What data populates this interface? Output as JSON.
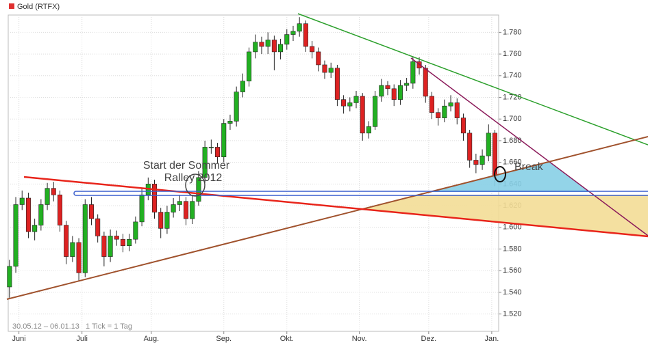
{
  "chart_data": {
    "type": "candlestick",
    "name": "Gold (RTFX)",
    "legend_color": "#e03030",
    "up_color": "#22b022",
    "down_color": "#dd2222",
    "x": [
      0,
      2,
      4,
      6,
      8,
      10,
      12,
      14,
      16,
      18,
      20,
      22,
      24,
      26,
      28,
      30,
      32,
      34,
      36,
      38,
      40,
      42,
      44,
      46,
      48,
      50,
      52,
      54,
      56,
      58,
      60,
      62,
      64,
      66,
      68,
      70,
      72,
      74,
      76,
      78,
      80,
      82,
      84,
      86,
      88,
      90,
      92,
      94,
      96,
      98,
      100,
      102,
      104,
      106,
      108,
      110,
      112,
      114,
      116,
      118,
      120,
      122,
      124,
      126,
      128,
      130,
      132,
      134,
      136,
      138,
      140,
      142,
      144,
      146,
      148,
      150,
      152,
      154
    ],
    "open": [
      1545,
      1564,
      1621,
      1627,
      1596,
      1602,
      1621,
      1636,
      1630,
      1602,
      1573,
      1586,
      1558,
      1621,
      1608,
      1592,
      1573,
      1592,
      1589,
      1583,
      1589,
      1605,
      1630,
      1640,
      1614,
      1599,
      1614,
      1621,
      1624,
      1608,
      1624,
      1646,
      1674,
      1674,
      1665,
      1696,
      1698,
      1725,
      1735,
      1762,
      1771,
      1767,
      1773,
      1762,
      1769,
      1778,
      1781,
      1788,
      1767,
      1762,
      1750,
      1743,
      1747,
      1718,
      1712,
      1715,
      1721,
      1687,
      1693,
      1721,
      1731,
      1728,
      1718,
      1731,
      1733,
      1753,
      1747,
      1721,
      1706,
      1701,
      1712,
      1715,
      1701,
      1687,
      1662,
      1658,
      1666,
      1687
    ],
    "high": [
      1570,
      1628,
      1634,
      1632,
      1608,
      1626,
      1641,
      1642,
      1634,
      1606,
      1592,
      1590,
      1626,
      1628,
      1612,
      1596,
      1598,
      1597,
      1594,
      1594,
      1610,
      1636,
      1646,
      1644,
      1618,
      1620,
      1627,
      1630,
      1628,
      1630,
      1652,
      1680,
      1681,
      1678,
      1700,
      1704,
      1730,
      1742,
      1766,
      1778,
      1776,
      1780,
      1777,
      1774,
      1783,
      1786,
      1794,
      1791,
      1772,
      1766,
      1754,
      1752,
      1750,
      1722,
      1720,
      1726,
      1724,
      1698,
      1726,
      1737,
      1735,
      1732,
      1736,
      1738,
      1758,
      1757,
      1750,
      1725,
      1710,
      1718,
      1722,
      1719,
      1705,
      1690,
      1668,
      1672,
      1695,
      1690
    ],
    "low": [
      1535,
      1558,
      1616,
      1590,
      1588,
      1597,
      1616,
      1624,
      1596,
      1566,
      1568,
      1550,
      1554,
      1602,
      1586,
      1564,
      1568,
      1583,
      1577,
      1578,
      1585,
      1601,
      1625,
      1608,
      1590,
      1594,
      1609,
      1615,
      1602,
      1603,
      1620,
      1641,
      1668,
      1659,
      1660,
      1690,
      1693,
      1720,
      1730,
      1756,
      1760,
      1760,
      1745,
      1755,
      1764,
      1772,
      1776,
      1762,
      1756,
      1744,
      1737,
      1738,
      1712,
      1705,
      1707,
      1710,
      1680,
      1682,
      1690,
      1716,
      1722,
      1712,
      1713,
      1726,
      1728,
      1741,
      1715,
      1700,
      1694,
      1697,
      1707,
      1695,
      1680,
      1655,
      1650,
      1653,
      1661,
      1638
    ],
    "close": [
      1564,
      1621,
      1627,
      1596,
      1602,
      1621,
      1636,
      1630,
      1602,
      1573,
      1586,
      1558,
      1621,
      1608,
      1592,
      1573,
      1592,
      1589,
      1583,
      1589,
      1605,
      1630,
      1640,
      1614,
      1599,
      1614,
      1621,
      1624,
      1608,
      1624,
      1646,
      1674,
      1674,
      1665,
      1696,
      1698,
      1725,
      1735,
      1762,
      1771,
      1767,
      1773,
      1762,
      1769,
      1778,
      1781,
      1788,
      1767,
      1762,
      1750,
      1743,
      1747,
      1718,
      1712,
      1715,
      1721,
      1687,
      1693,
      1721,
      1731,
      1728,
      1718,
      1731,
      1733,
      1753,
      1747,
      1721,
      1706,
      1701,
      1712,
      1715,
      1701,
      1687,
      1662,
      1658,
      1666,
      1687,
      1646
    ],
    "xlim": [
      -0.4,
      155.2
    ],
    "xticks": [
      {
        "value": 3,
        "label": "Juni"
      },
      {
        "value": 23,
        "label": "Juli"
      },
      {
        "value": 45,
        "label": "Aug."
      },
      {
        "value": 68,
        "label": "Sep."
      },
      {
        "value": 88,
        "label": "Okt."
      },
      {
        "value": 111,
        "label": "Nov."
      },
      {
        "value": 133,
        "label": "Dez."
      },
      {
        "value": 153,
        "label": "Jan."
      }
    ],
    "ylim": [
      1504,
      1796
    ],
    "yticks": [
      {
        "value": 1520,
        "label": "1.520"
      },
      {
        "value": 1540,
        "label": "1.540"
      },
      {
        "value": 1560,
        "label": "1.560"
      },
      {
        "value": 1580,
        "label": "1.580"
      },
      {
        "value": 1600,
        "label": "1.600"
      },
      {
        "value": 1620,
        "label": "1.620"
      },
      {
        "value": 1640,
        "label": "1.640"
      },
      {
        "value": 1660,
        "label": "1.660"
      },
      {
        "value": 1680,
        "label": "1.680"
      },
      {
        "value": 1700,
        "label": "1.700"
      },
      {
        "value": 1720,
        "label": "1.720"
      },
      {
        "value": 1740,
        "label": "1.740"
      },
      {
        "value": 1760,
        "label": "1.760"
      },
      {
        "value": 1780,
        "label": "1.780"
      }
    ],
    "grid": true,
    "date_range": "30.05.12 – 06.01.13",
    "tick_note": "1 Tick = 1 Tag",
    "annotations": [
      "Start der Sommer",
      "Ralley 2012",
      "Break"
    ]
  }
}
